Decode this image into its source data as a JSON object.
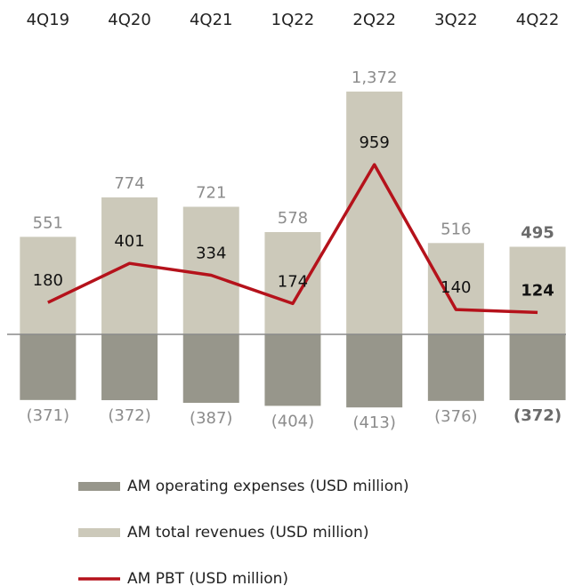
{
  "chart_data": {
    "type": "bar",
    "categories": [
      "4Q19",
      "4Q20",
      "4Q21",
      "1Q22",
      "2Q22",
      "3Q22",
      "4Q22"
    ],
    "series": [
      {
        "name": "AM operating expenses (USD million)",
        "type": "bar",
        "color": "#97968b",
        "values": [
          -371,
          -372,
          -387,
          -404,
          -413,
          -376,
          -372
        ],
        "value_labels": [
          "(371)",
          "(372)",
          "(387)",
          "(404)",
          "(413)",
          "(376)",
          "(372)"
        ]
      },
      {
        "name": "AM total revenues (USD million)",
        "type": "bar",
        "color": "#ccc9ba",
        "values": [
          551,
          774,
          721,
          578,
          1372,
          516,
          495
        ],
        "value_labels": [
          "551",
          "774",
          "721",
          "578",
          "1,372",
          "516",
          "495"
        ]
      },
      {
        "name": "AM PBT (USD million)",
        "type": "line",
        "color": "#b5121b",
        "values": [
          180,
          401,
          334,
          174,
          959,
          140,
          124
        ]
      }
    ],
    "ylim": [
      -500,
      1500
    ],
    "bold_last": true
  }
}
